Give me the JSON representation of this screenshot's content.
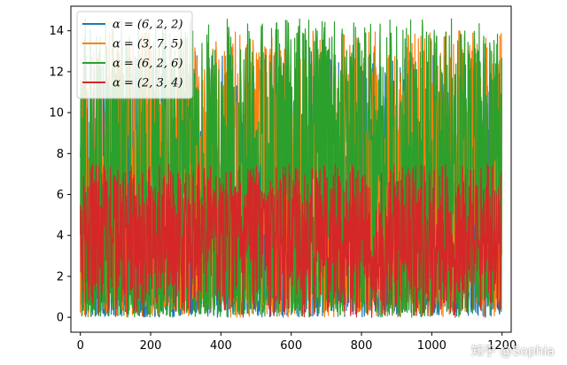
{
  "chart_data": {
    "type": "line",
    "title": "",
    "xlabel": "",
    "ylabel": "",
    "xlim": [
      -27,
      1226
    ],
    "ylim": [
      -0.73,
      15.2
    ],
    "x_ticks": [
      0,
      200,
      400,
      600,
      800,
      1000,
      1200
    ],
    "x_tick_labels": [
      "0",
      "200",
      "400",
      "600",
      "800",
      "1000",
      "1200"
    ],
    "y_ticks": [
      0,
      2,
      4,
      6,
      8,
      10,
      12,
      14
    ],
    "y_tick_labels": [
      "0",
      "2",
      "4",
      "6",
      "8",
      "10",
      "12",
      "14"
    ],
    "grid": false,
    "legend_position": "top-left",
    "n_points": 1200,
    "series": [
      {
        "name": "α = (6, 2, 2)",
        "color": "#1f77b4",
        "approx_range": [
          0,
          13
        ]
      },
      {
        "name": "α = (3, 7, 5)",
        "color": "#ff7f0e",
        "approx_range": [
          0,
          14
        ]
      },
      {
        "name": "α = (6, 2, 6)",
        "color": "#2ca02c",
        "approx_range": [
          0,
          14.6
        ]
      },
      {
        "name": "α = (2, 3, 4)",
        "color": "#d62728",
        "approx_range": [
          0,
          7.5
        ]
      }
    ]
  },
  "watermark": "知乎 @Sophia"
}
